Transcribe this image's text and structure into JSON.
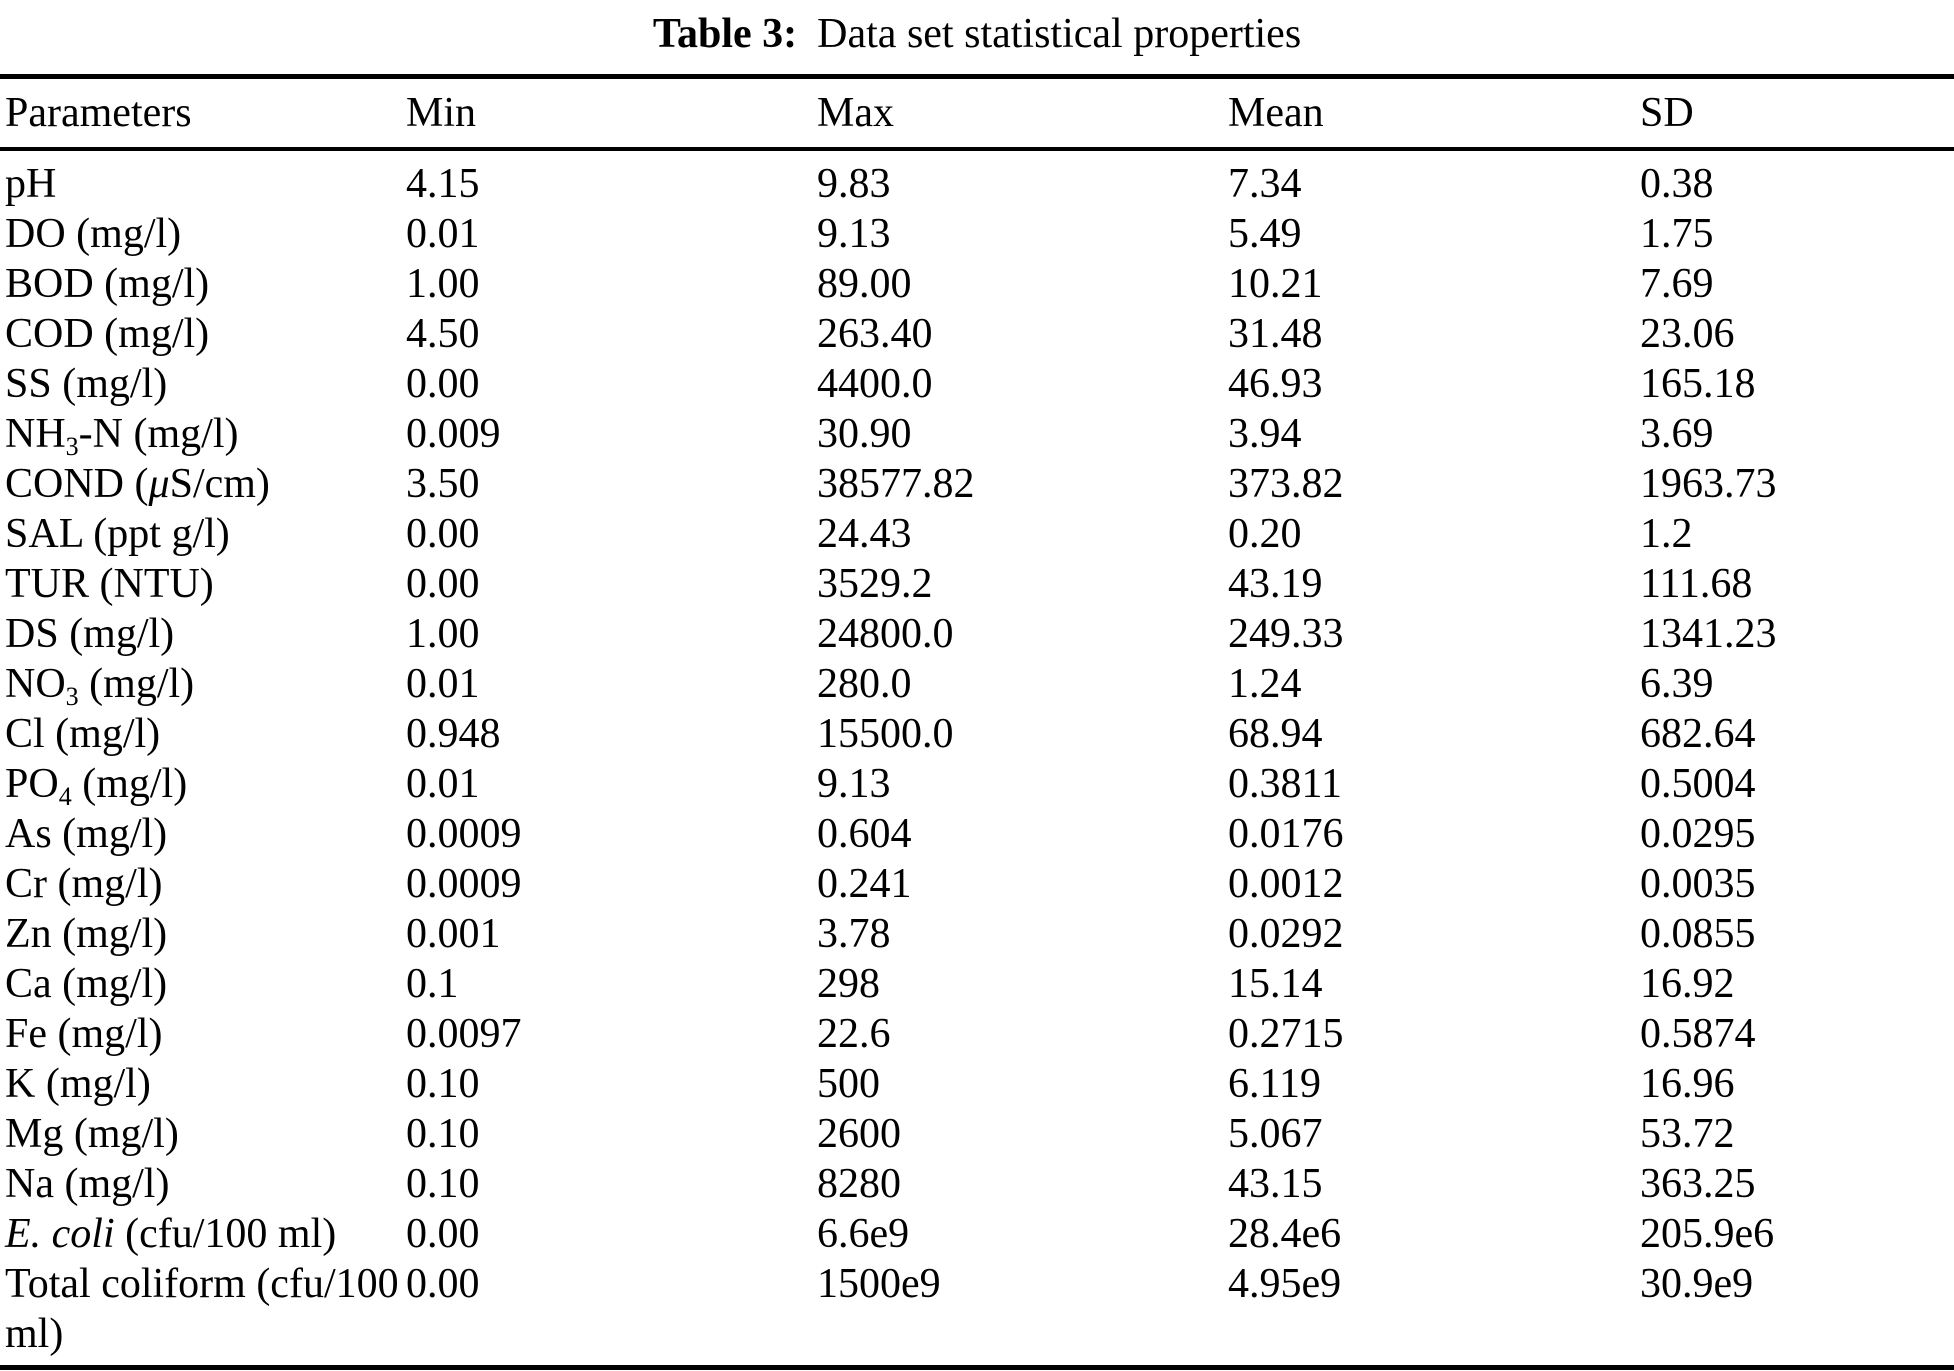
{
  "caption": {
    "label": "Table 3:",
    "text": "Data set statistical properties"
  },
  "table": {
    "columns": [
      "Parameters",
      "Min",
      "Max",
      "Mean",
      "SD"
    ],
    "rows": [
      {
        "param": [
          {
            "t": "pH"
          }
        ],
        "min": "4.15",
        "max": "9.83",
        "mean": "7.34",
        "sd": "0.38"
      },
      {
        "param": [
          {
            "t": "DO (mg/l)"
          }
        ],
        "min": "0.01",
        "max": "9.13",
        "mean": "5.49",
        "sd": "1.75"
      },
      {
        "param": [
          {
            "t": "BOD (mg/l)"
          }
        ],
        "min": "1.00",
        "max": "89.00",
        "mean": "10.21",
        "sd": "7.69"
      },
      {
        "param": [
          {
            "t": "COD (mg/l)"
          }
        ],
        "min": "4.50",
        "max": "263.40",
        "mean": "31.48",
        "sd": "23.06"
      },
      {
        "param": [
          {
            "t": "SS (mg/l)"
          }
        ],
        "min": "0.00",
        "max": "4400.0",
        "mean": "46.93",
        "sd": "165.18"
      },
      {
        "param": [
          {
            "t": "NH"
          },
          {
            "t": "3",
            "sub": true
          },
          {
            "t": "-N (mg/l)"
          }
        ],
        "min": "0.009",
        "max": "30.90",
        "mean": "3.94",
        "sd": "3.69"
      },
      {
        "param": [
          {
            "t": "COND ("
          },
          {
            "t": "μ",
            "italic": true
          },
          {
            "t": "S/cm)"
          }
        ],
        "min": "3.50",
        "max": "38577.82",
        "mean": "373.82",
        "sd": "1963.73"
      },
      {
        "param": [
          {
            "t": "SAL (ppt g/l)"
          }
        ],
        "min": "0.00",
        "max": "24.43",
        "mean": "0.20",
        "sd": "1.2"
      },
      {
        "param": [
          {
            "t": "TUR (NTU)"
          }
        ],
        "min": "0.00",
        "max": "3529.2",
        "mean": "43.19",
        "sd": "111.68"
      },
      {
        "param": [
          {
            "t": "DS (mg/l)"
          }
        ],
        "min": "1.00",
        "max": "24800.0",
        "mean": "249.33",
        "sd": "1341.23"
      },
      {
        "param": [
          {
            "t": "NO"
          },
          {
            "t": "3",
            "sub": true
          },
          {
            "t": " (mg/l)"
          }
        ],
        "min": "0.01",
        "max": "280.0",
        "mean": "1.24",
        "sd": "6.39"
      },
      {
        "param": [
          {
            "t": "Cl (mg/l)"
          }
        ],
        "min": "0.948",
        "max": "15500.0",
        "mean": "68.94",
        "sd": "682.64"
      },
      {
        "param": [
          {
            "t": "PO"
          },
          {
            "t": "4",
            "sub": true
          },
          {
            "t": " (mg/l)"
          }
        ],
        "min": "0.01",
        "max": "9.13",
        "mean": "0.3811",
        "sd": "0.5004"
      },
      {
        "param": [
          {
            "t": "As (mg/l)"
          }
        ],
        "min": "0.0009",
        "max": "0.604",
        "mean": "0.0176",
        "sd": "0.0295"
      },
      {
        "param": [
          {
            "t": "Cr (mg/l)"
          }
        ],
        "min": "0.0009",
        "max": "0.241",
        "mean": "0.0012",
        "sd": "0.0035"
      },
      {
        "param": [
          {
            "t": "Zn (mg/l)"
          }
        ],
        "min": "0.001",
        "max": "3.78",
        "mean": "0.0292",
        "sd": "0.0855"
      },
      {
        "param": [
          {
            "t": "Ca (mg/l)"
          }
        ],
        "min": "0.1",
        "max": "298",
        "mean": "15.14",
        "sd": "16.92"
      },
      {
        "param": [
          {
            "t": "Fe (mg/l)"
          }
        ],
        "min": "0.0097",
        "max": "22.6",
        "mean": "0.2715",
        "sd": "0.5874"
      },
      {
        "param": [
          {
            "t": "K (mg/l)"
          }
        ],
        "min": "0.10",
        "max": "500",
        "mean": "6.119",
        "sd": "16.96"
      },
      {
        "param": [
          {
            "t": "Mg (mg/l)"
          }
        ],
        "min": "0.10",
        "max": "2600",
        "mean": "5.067",
        "sd": "53.72"
      },
      {
        "param": [
          {
            "t": "Na (mg/l)"
          }
        ],
        "min": "0.10",
        "max": "8280",
        "mean": "43.15",
        "sd": "363.25"
      },
      {
        "param": [
          {
            "t": "E. coli",
            "italic": true
          },
          {
            "t": " (cfu/100 ml)"
          }
        ],
        "min": "0.00",
        "max": "6.6e9",
        "mean": "28.4e6",
        "sd": "205.9e6"
      },
      {
        "param": [
          {
            "t": "Total coliform (cfu/100 ml)"
          }
        ],
        "min": "0.00",
        "max": "1500e9",
        "mean": "4.95e9",
        "sd": "30.9e9"
      }
    ]
  }
}
